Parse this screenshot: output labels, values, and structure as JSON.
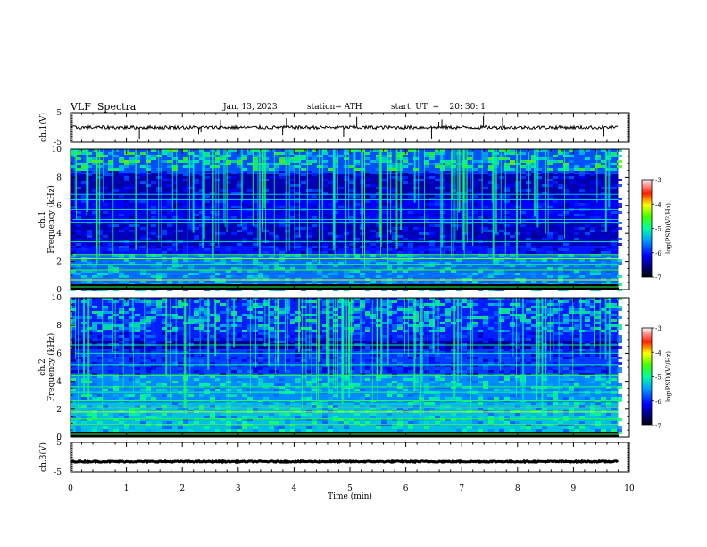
{
  "header": {
    "title": "VLF  Spectra",
    "date": "Jan. 13, 2023",
    "station": "station= ATH",
    "start_ut": "start  UT  =    20: 30: 1"
  },
  "chart_data": [
    {
      "type": "line",
      "panel": "ch1-waveform",
      "ylabel": "ch.1(V)",
      "ylim": [
        -5,
        5
      ],
      "yticks": [
        5,
        -5
      ],
      "xlim": [
        0,
        10
      ],
      "series": [
        {
          "x_range": [
            0,
            9.8
          ],
          "baseline": 0,
          "noise_amplitude": 0.6
        }
      ]
    },
    {
      "type": "heatmap",
      "panel": "ch1-spectrogram",
      "ylabel": "ch.1\nFrequency (kHz)",
      "ylabel_lines": [
        "ch.1",
        "Frequency (kHz)"
      ],
      "ylim": [
        0,
        10
      ],
      "yticks": [
        0,
        2,
        4,
        6,
        8,
        10
      ],
      "xlim": [
        0,
        10
      ],
      "data_x_range": [
        0,
        9.8
      ],
      "colorbar": {
        "label": "log(PSD)(V²/Hz)",
        "range": [
          -7,
          -3
        ],
        "ticks": [
          -3,
          -4,
          -5,
          -6,
          -7
        ]
      }
    },
    {
      "type": "heatmap",
      "panel": "ch2-spectrogram",
      "ylabel_lines": [
        "ch.2",
        "Frequency (kHz)"
      ],
      "ylim": [
        0,
        10
      ],
      "yticks": [
        0,
        2,
        4,
        6,
        8,
        10
      ],
      "xlim": [
        0,
        10
      ],
      "data_x_range": [
        0,
        9.8
      ],
      "colorbar": {
        "label": "log(PSD)(V²/Hz)",
        "range": [
          -7,
          -3
        ],
        "ticks": [
          -3,
          -4,
          -5,
          -6,
          -7
        ]
      }
    },
    {
      "type": "line",
      "panel": "ch3-waveform",
      "ylabel": "ch.3(V)",
      "ylim": [
        -5,
        5
      ],
      "yticks": [
        5,
        -5
      ],
      "xlim": [
        0,
        10
      ],
      "xticks": [
        0,
        1,
        2,
        3,
        4,
        5,
        6,
        7,
        8,
        9,
        10
      ],
      "xlabel": "Time  (min)",
      "series": [
        {
          "x_range": [
            0,
            9.8
          ],
          "baseline": -1.5,
          "noise_amplitude": 0.2
        }
      ]
    }
  ]
}
